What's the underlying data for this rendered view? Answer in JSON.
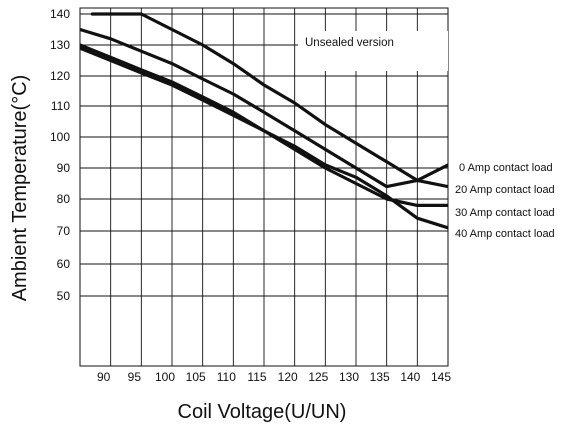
{
  "chart_data": {
    "type": "line",
    "xlabel": "Coil Voltage(U/UN)",
    "ylabel": "Ambient Temperature(°C)",
    "annotation": "Unsealed  version",
    "x_ticks": [
      90,
      95,
      100,
      105,
      110,
      115,
      120,
      125,
      130,
      135,
      140,
      145
    ],
    "y_ticks": [
      50,
      60,
      70,
      80,
      90,
      100,
      110,
      120,
      130,
      140
    ],
    "xlim": [
      85,
      145
    ],
    "grid": true,
    "legend_placement": "right of curve ends",
    "series": [
      {
        "name": "0 Amp contact load",
        "x": [
          87,
          95,
          100,
          105,
          110,
          115,
          120,
          125,
          130,
          135,
          140,
          145
        ],
        "y": [
          140,
          140,
          135,
          130,
          124,
          117,
          111,
          104,
          98,
          92,
          86,
          91
        ]
      },
      {
        "name": "20 Amp contact load",
        "x": [
          85,
          90,
          95,
          100,
          105,
          110,
          115,
          120,
          125,
          130,
          135,
          140,
          145
        ],
        "y": [
          135,
          132,
          128,
          124,
          119,
          114,
          108,
          102,
          96,
          90,
          84,
          86,
          84
        ]
      },
      {
        "name": "30 Amp contact load",
        "x": [
          85,
          90,
          95,
          100,
          105,
          110,
          115,
          120,
          125,
          130,
          135,
          140,
          145
        ],
        "y": [
          130,
          126,
          122,
          118,
          113,
          108,
          102,
          96,
          90,
          85,
          80,
          78,
          78
        ]
      },
      {
        "name": "40 Amp contact load",
        "x": [
          85,
          90,
          95,
          100,
          105,
          110,
          115,
          120,
          125,
          130,
          135,
          140,
          145
        ],
        "y": [
          129,
          125,
          121,
          117,
          112,
          107,
          102,
          97,
          91,
          87,
          81,
          74,
          71
        ]
      }
    ]
  }
}
